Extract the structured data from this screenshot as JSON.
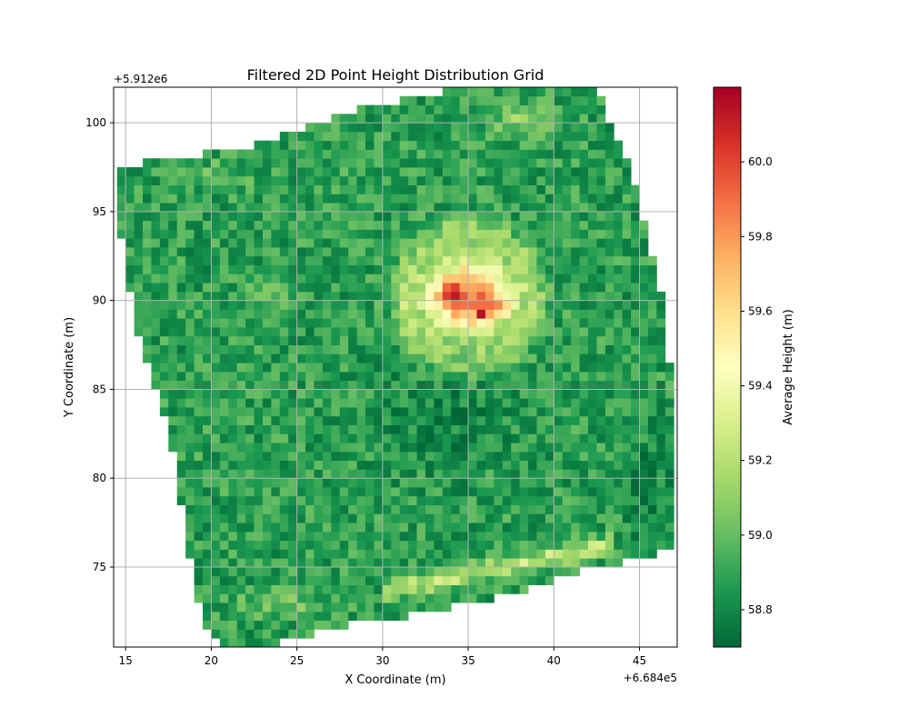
{
  "chart_data": {
    "type": "heatmap",
    "title": "Filtered 2D Point Height Distribution Grid",
    "xlabel": "X Coordinate (m)",
    "ylabel": "Y Coordinate (m)",
    "x_offset_label": "+6.684e5",
    "y_offset_label": "+5.912e6",
    "xlim": [
      14.3,
      47.2
    ],
    "ylim": [
      70.5,
      102.0
    ],
    "x_ticks": [
      15,
      20,
      25,
      30,
      35,
      40,
      45
    ],
    "y_ticks": [
      75,
      80,
      85,
      90,
      95,
      100
    ],
    "grid": true,
    "cell_size": 0.5,
    "colormap": "RdYlGn_r",
    "colorbar": {
      "label": "Average Height (m)",
      "range": [
        58.7,
        60.2
      ],
      "ticks": [
        58.8,
        59.0,
        59.2,
        59.4,
        59.6,
        59.8,
        60.0
      ]
    },
    "footprint_polygon": [
      [
        14.3,
        97.5
      ],
      [
        21.5,
        98.5
      ],
      [
        27.0,
        100.3
      ],
      [
        30.5,
        101.2
      ],
      [
        35.0,
        102.0
      ],
      [
        42.5,
        102.0
      ],
      [
        44.8,
        96.5
      ],
      [
        46.5,
        89.5
      ],
      [
        47.2,
        80.5
      ],
      [
        47.2,
        76.0
      ],
      [
        45.0,
        75.5
      ],
      [
        41.5,
        74.7
      ],
      [
        38.0,
        73.5
      ],
      [
        33.0,
        72.5
      ],
      [
        27.5,
        71.7
      ],
      [
        23.0,
        70.5
      ],
      [
        21.0,
        70.5
      ],
      [
        19.5,
        72.0
      ],
      [
        18.5,
        77.0
      ],
      [
        17.5,
        83.0
      ],
      [
        15.5,
        89.0
      ],
      [
        14.8,
        93.5
      ],
      [
        14.3,
        95.0
      ]
    ],
    "height_model": {
      "base": 58.88,
      "noise": 0.13,
      "features": [
        {
          "kind": "peak",
          "x": 35.0,
          "y": 90.2,
          "rx": 2.6,
          "ry": 2.2,
          "amp": 1.0
        },
        {
          "kind": "peak",
          "x": 33.8,
          "y": 90.3,
          "rx": 0.8,
          "ry": 0.7,
          "amp": 0.3
        },
        {
          "kind": "peak",
          "x": 36.8,
          "y": 89.7,
          "rx": 0.7,
          "ry": 0.6,
          "amp": 0.3
        },
        {
          "kind": "peak",
          "x": 35.9,
          "y": 89.3,
          "rx": 0.35,
          "ry": 0.35,
          "amp": 0.45
        },
        {
          "kind": "ring",
          "x": 35.0,
          "y": 90.2,
          "r": 3.8,
          "w": 0.8,
          "amp": 0.18
        },
        {
          "kind": "band",
          "x1": 30.0,
          "y1": 73.6,
          "x2": 43.5,
          "y2": 76.3,
          "w": 0.55,
          "amp": 0.35
        },
        {
          "kind": "peak",
          "x": 38.0,
          "y": 100.2,
          "rx": 1.6,
          "ry": 0.9,
          "amp": 0.22
        },
        {
          "kind": "peak",
          "x": 24.0,
          "y": 73.0,
          "rx": 2.5,
          "ry": 0.8,
          "amp": 0.15
        },
        {
          "kind": "peak",
          "x": 23.0,
          "y": 90.3,
          "rx": 1.2,
          "ry": 1.0,
          "amp": 0.14
        },
        {
          "kind": "peak",
          "x": 20.5,
          "y": 97.0,
          "rx": 1.8,
          "ry": 0.8,
          "amp": 0.12
        },
        {
          "kind": "dip",
          "x": 33.5,
          "y": 83.5,
          "rx": 3.5,
          "ry": 3.0,
          "amp": -0.1
        },
        {
          "kind": "dip",
          "x": 45.5,
          "y": 79.5,
          "rx": 1.5,
          "ry": 3.0,
          "amp": -0.1
        }
      ]
    }
  }
}
